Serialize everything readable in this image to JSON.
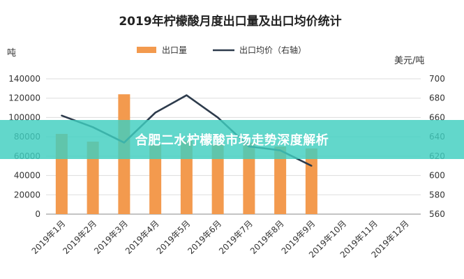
{
  "chart_data": {
    "type": "bar+line",
    "title": "2019年柠檬酸月度出口量及出口均价统计",
    "categories": [
      "2019年1月",
      "2019年2月",
      "2019年3月",
      "2019年4月",
      "2019年5月",
      "2019年6月",
      "2019年7月",
      "2019年8月",
      "2019年9月",
      "2019年10月",
      "2019年11月",
      "2019年12月"
    ],
    "bar_series": {
      "name": "出口量",
      "values": [
        83000,
        75000,
        124000,
        72000,
        76000,
        72000,
        74000,
        70000,
        68000,
        null,
        null,
        null
      ]
    },
    "line_series": {
      "name": "出口均价（右轴）",
      "values": [
        662,
        650,
        634,
        665,
        683,
        660,
        630,
        626,
        610,
        null,
        null,
        null
      ]
    },
    "y_left": {
      "unit": "吨",
      "min": 0,
      "max": 140000,
      "ticks": [
        "0",
        "20000",
        "40000",
        "60000",
        "80000",
        "100000",
        "120000",
        "140000"
      ]
    },
    "y_right": {
      "unit": "美元/吨",
      "min": 560,
      "max": 700,
      "ticks": [
        "560",
        "580",
        "600",
        "620",
        "640",
        "660",
        "680",
        "700"
      ]
    },
    "legend_position": "top-center",
    "colors": {
      "bar": "#F39A4E",
      "line": "#2D3B4C"
    }
  },
  "overlay": {
    "banner_text": "合肥二水柠檬酸市场走势深度解析",
    "banner_color": "#40CEC0"
  }
}
